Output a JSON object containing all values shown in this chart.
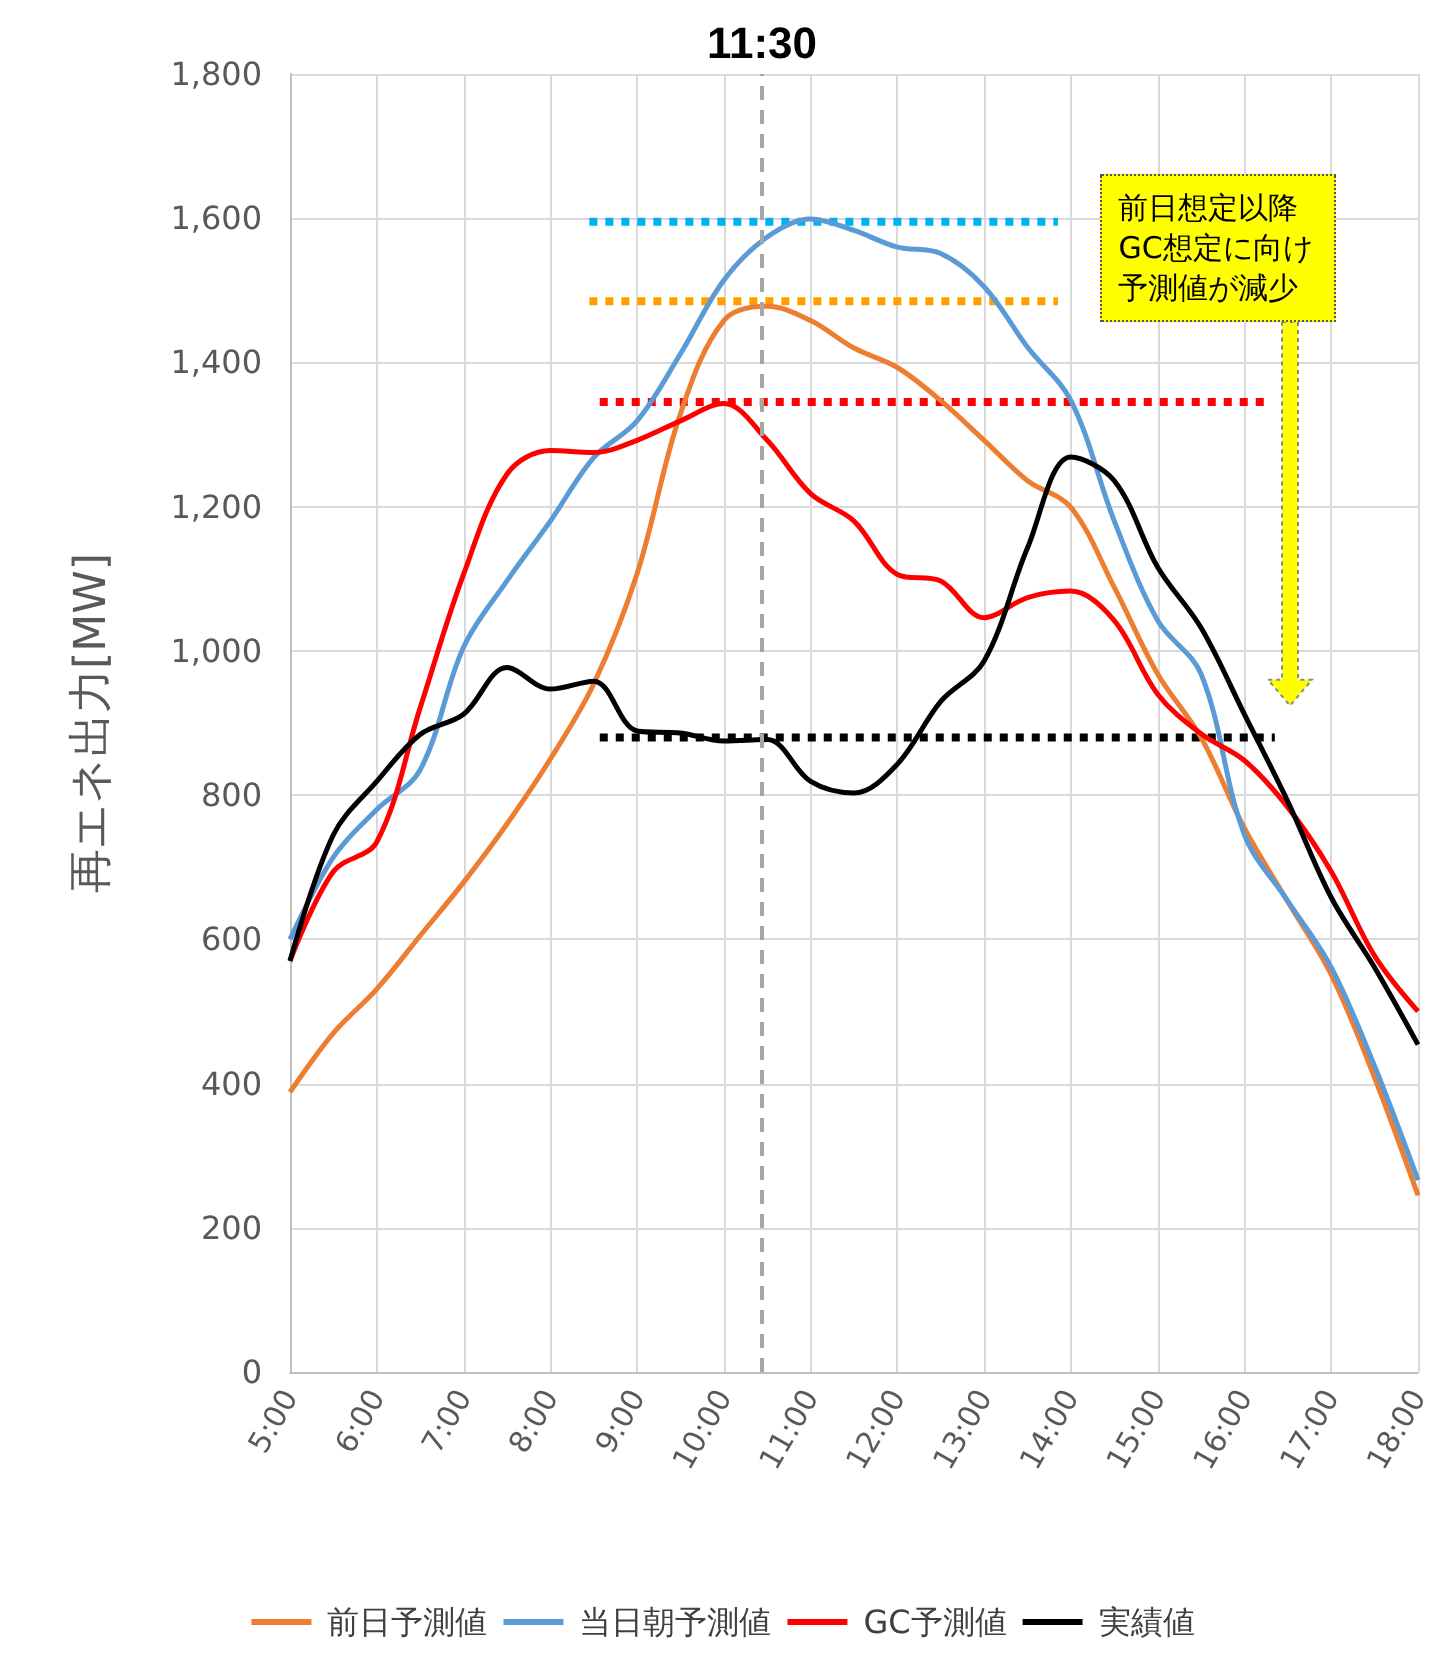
{
  "chart_data": {
    "type": "line",
    "ylabel": "再エネ出力[MW]",
    "x": [
      5,
      5.5,
      6,
      6.5,
      7,
      7.5,
      8,
      8.5,
      9,
      9.5,
      10,
      10.5,
      11,
      11.5,
      12,
      12.5,
      13,
      13.5,
      14,
      14.5,
      15,
      15.5,
      16,
      16.5,
      17,
      17.5,
      18
    ],
    "series": [
      {
        "name": "前日予測値",
        "color": "#ed7d31",
        "values": [
          388,
          470,
          531,
          605,
          679,
          760,
          850,
          954,
          1107,
          1329,
          1458,
          1478,
          1458,
          1420,
          1393,
          1347,
          1292,
          1236,
          1199,
          1088,
          968,
          880,
          754,
          652,
          551,
          408,
          245
        ]
      },
      {
        "name": "当日朝予測値",
        "color": "#5b9bd5",
        "values": [
          600,
          714,
          780,
          835,
          1005,
          1097,
          1180,
          1268,
          1319,
          1412,
          1514,
          1574,
          1599,
          1583,
          1560,
          1551,
          1505,
          1421,
          1347,
          1180,
          1042,
          968,
          745,
          653,
          561,
          424,
          266
        ]
      },
      {
        "name": "GC予測値",
        "color": "#ff0000",
        "values": [
          570,
          694,
          735,
          921,
          1106,
          1245,
          1278,
          1275,
          1292,
          1319,
          1343,
          1292,
          1218,
          1180,
          1106,
          1097,
          1046,
          1074,
          1083,
          1042,
          940,
          885,
          848,
          783,
          694,
          577,
          500
        ]
      },
      {
        "name": "実績値",
        "color": "#000000",
        "values": [
          570,
          745,
          819,
          884,
          912,
          977,
          947,
          958,
          889,
          886,
          875,
          877,
          819,
          803,
          843,
          930,
          986,
          1143,
          1269,
          1236,
          1116,
          1032,
          912,
          791,
          658,
          561,
          454
        ]
      },
      {
        "color": "#00b0f0",
        "x": [
          8.45,
          13.85
        ],
        "values": [
          1595,
          1595
        ],
        "line_style": "dotted"
      },
      {
        "color": "#ffa000",
        "x": [
          8.45,
          13.85
        ],
        "values": [
          1485,
          1485
        ],
        "line_style": "dotted"
      },
      {
        "color": "#ff0000",
        "x": [
          8.57,
          16.3
        ],
        "values": [
          1345,
          1345
        ],
        "line_style": "dotted"
      },
      {
        "color": "#000000",
        "x": [
          8.57,
          16.35
        ],
        "values": [
          880,
          880
        ],
        "line_style": "dotted"
      }
    ],
    "xlim": [
      5,
      18
    ],
    "xticks": [
      {
        "value": 5,
        "label": "5:00"
      },
      {
        "value": 6,
        "label": "6:00"
      },
      {
        "value": 7,
        "label": "7:00"
      },
      {
        "value": 8,
        "label": "8:00"
      },
      {
        "value": 9,
        "label": "9:00"
      },
      {
        "value": 10,
        "label": "10:00"
      },
      {
        "value": 11,
        "label": "11:00"
      },
      {
        "value": 12,
        "label": "12:00"
      },
      {
        "value": 13,
        "label": "13:00"
      },
      {
        "value": 14,
        "label": "14:00"
      },
      {
        "value": 15,
        "label": "15:00"
      },
      {
        "value": 16,
        "label": "16:00"
      },
      {
        "value": 17,
        "label": "17:00"
      },
      {
        "value": 18,
        "label": "18:00"
      }
    ],
    "ylim": [
      0,
      1800
    ],
    "yticks": [
      0,
      200,
      400,
      600,
      800,
      {
        "value": 1000,
        "label": "1,000"
      },
      {
        "value": 1200,
        "label": "1,200"
      },
      {
        "value": 1400,
        "label": "1,400"
      },
      {
        "value": 1600,
        "label": "1,600"
      },
      {
        "value": 1800,
        "label": "1,800"
      }
    ],
    "ref_lines": [
      {
        "axis": "x",
        "value": 10.44,
        "color": "#a6a6a6",
        "line_style": "dashed"
      }
    ],
    "annotations": [
      "11:30",
      "前日想定以降GC想定に向け予測値が減少"
    ],
    "grid": true,
    "legend": "bottom",
    "marker": "none",
    "line_style": "solid"
  }
}
